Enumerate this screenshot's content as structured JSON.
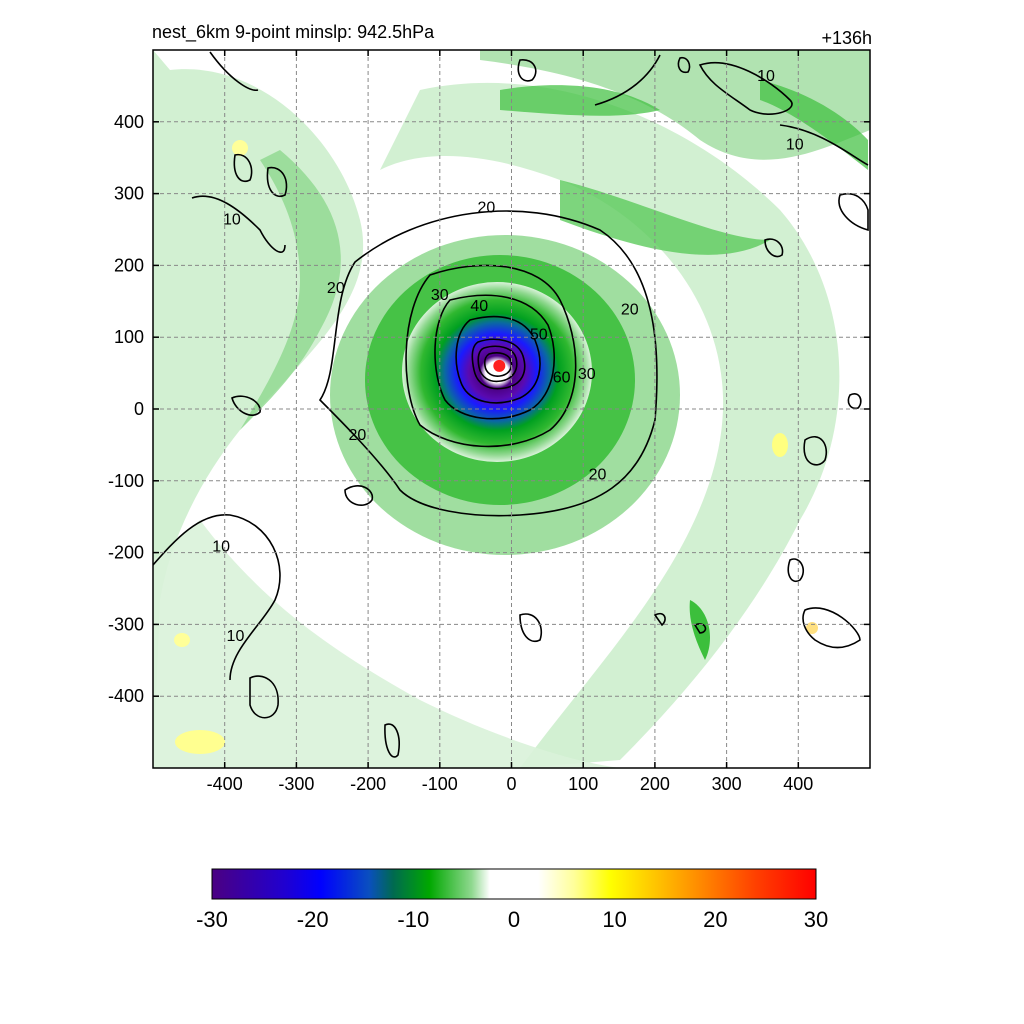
{
  "chart_data": {
    "type": "heatmap",
    "title_left": "nest_6km  9-point minslp: 942.5hPa",
    "title_right": "+136h",
    "xlabel": "",
    "ylabel": "",
    "xlim": [
      -500,
      500
    ],
    "ylim": [
      -500,
      500
    ],
    "x_ticks": [
      -400,
      -300,
      -200,
      -100,
      0,
      100,
      200,
      300,
      400
    ],
    "y_ticks": [
      400,
      300,
      200,
      100,
      0,
      -100,
      -200,
      -300,
      -400
    ],
    "grid": true,
    "center_marker": {
      "x": -17,
      "y": 60,
      "color": "#ff2020"
    },
    "contour_levels": [
      10,
      20,
      30,
      40,
      50,
      60
    ],
    "contour_labels": [
      {
        "text": "20",
        "x": -35,
        "y": 282
      },
      {
        "text": "20",
        "x": -245,
        "y": 170
      },
      {
        "text": "20",
        "x": 165,
        "y": 140
      },
      {
        "text": "20",
        "x": -215,
        "y": -35
      },
      {
        "text": "20",
        "x": 120,
        "y": -90
      },
      {
        "text": "30",
        "x": -100,
        "y": 160
      },
      {
        "text": "30",
        "x": 105,
        "y": 50
      },
      {
        "text": "40",
        "x": -45,
        "y": 145
      },
      {
        "text": "50",
        "x": 38,
        "y": 105
      },
      {
        "text": "60",
        "x": 70,
        "y": 45
      },
      {
        "text": "10",
        "x": -390,
        "y": 265
      },
      {
        "text": "10",
        "x": -405,
        "y": -190
      },
      {
        "text": "10",
        "x": -385,
        "y": -315
      },
      {
        "text": "10",
        "x": 355,
        "y": 465
      },
      {
        "text": "10",
        "x": 395,
        "y": 370
      }
    ],
    "colorbar": {
      "min": -30,
      "max": 30,
      "ticks": [
        -30,
        -20,
        -10,
        0,
        10,
        20,
        30
      ],
      "colors": [
        "#4b0082",
        "#3a0ad0",
        "#0000ff",
        "#0a4fbf",
        "#007a3a",
        "#00a800",
        "#3cbf3c",
        "#8fd88f",
        "#d9f2d9",
        "#ffffff",
        "#ffffff",
        "#ffffcc",
        "#ffff66",
        "#ffff00",
        "#ffd000",
        "#ffa000",
        "#ff6a00",
        "#ff3300",
        "#ff0000"
      ]
    }
  }
}
